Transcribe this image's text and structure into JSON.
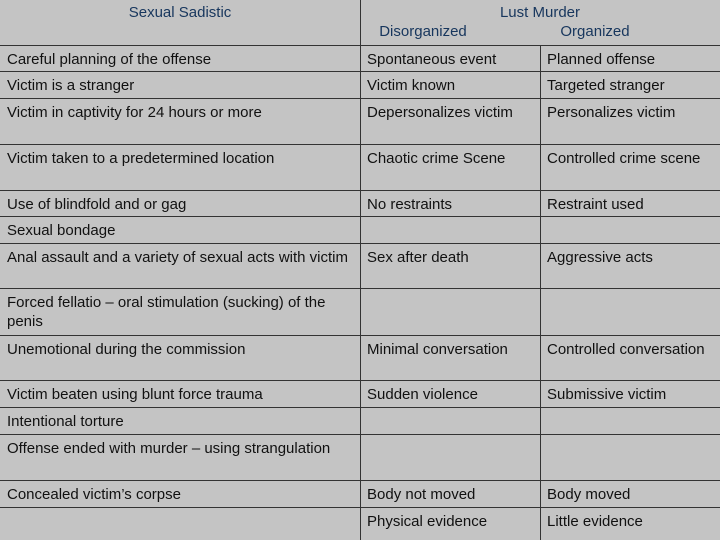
{
  "header": {
    "left": "Sexual Sadistic",
    "right": "Lust Murder",
    "subheaders": [
      "Disorganized",
      "Organized"
    ]
  },
  "table": {
    "rows": [
      [
        "Careful planning of the offense",
        "Spontaneous event",
        "Planned offense"
      ],
      [
        "Victim is a stranger",
        "Victim known",
        "Targeted stranger"
      ],
      [
        "Victim in captivity for 24 hours or more",
        "Depersonalizes victim",
        "Personalizes victim"
      ],
      [
        "Victim taken to a predetermined location",
        "Chaotic crime Scene",
        "Controlled crime scene"
      ],
      [
        "Use of blindfold and or gag",
        "No restraints",
        "Restraint used"
      ],
      [
        "Sexual bondage",
        null,
        null
      ],
      [
        "Anal assault and a variety of sexual acts with victim",
        "Sex after death",
        "Aggressive acts"
      ],
      [
        "Forced fellatio – oral stimulation (sucking) of the penis",
        null,
        null
      ],
      [
        "Unemotional during the commission",
        "Minimal conversation",
        "Controlled conversation"
      ],
      [
        "Victim beaten using blunt force trauma",
        "Sudden violence",
        "Submissive victim"
      ],
      [
        "Intentional torture",
        null,
        null
      ],
      [
        "Offense ended with murder – using strangulation",
        null,
        null
      ],
      [
        "Concealed victim’s corpse",
        "Body not moved",
        "Body moved"
      ],
      [
        null,
        "Physical evidence",
        "Little evidence"
      ]
    ]
  }
}
